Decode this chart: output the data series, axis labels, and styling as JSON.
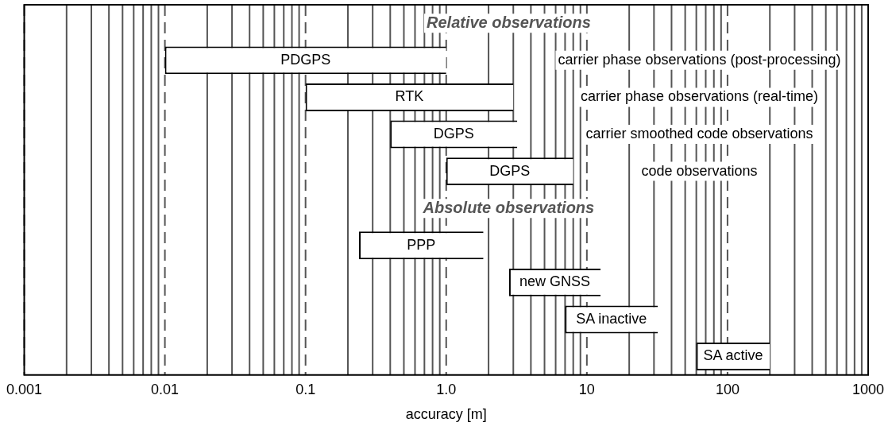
{
  "chart_data": {
    "type": "bar",
    "orientation": "horizontal",
    "xlabel": "accuracy [m]",
    "log": "x",
    "grid": "x",
    "categories": [
      null,
      null,
      null,
      null,
      null,
      null,
      null,
      null,
      null,
      null
    ],
    "base": [
      null,
      0.01,
      0.1,
      0.4,
      1,
      null,
      0.24,
      2.8,
      7,
      60
    ],
    "values": [
      null,
      0.99,
      2.9,
      2.8,
      7,
      null,
      1.6,
      9.7,
      25,
      140
    ],
    "value_labels": [
      null,
      "PDGPS",
      "RTK",
      "DGPS",
      "DGPS",
      null,
      "PPP",
      "new GNSS",
      "SA inactive",
      "SA active"
    ],
    "color": "#ffffff",
    "xlim": [
      0.001,
      1000
    ],
    "xticks": [
      0.001,
      {
        "value": 0.002,
        "label": null
      },
      {
        "value": 0.003,
        "label": null
      },
      {
        "value": 0.004,
        "label": null
      },
      {
        "value": 0.005,
        "label": null
      },
      {
        "value": 0.006,
        "label": null
      },
      {
        "value": 0.007,
        "label": null
      },
      {
        "value": 0.008,
        "label": null
      },
      {
        "value": 0.009,
        "label": null
      },
      0.01,
      {
        "value": 0.02,
        "label": null
      },
      {
        "value": 0.03,
        "label": null
      },
      {
        "value": 0.04,
        "label": null
      },
      {
        "value": 0.05,
        "label": null
      },
      {
        "value": 0.06,
        "label": null
      },
      {
        "value": 0.07,
        "label": null
      },
      {
        "value": 0.08,
        "label": null
      },
      {
        "value": 0.09,
        "label": null
      },
      0.1,
      {
        "value": 0.2,
        "label": null
      },
      {
        "value": 0.3,
        "label": null
      },
      {
        "value": 0.4,
        "label": null
      },
      {
        "value": 0.5,
        "label": null
      },
      {
        "value": 0.6,
        "label": null
      },
      {
        "value": 0.7,
        "label": null
      },
      {
        "value": 0.8,
        "label": null
      },
      {
        "value": 0.9,
        "label": null
      },
      {
        "value": 1,
        "label": "1.0"
      },
      {
        "value": 2,
        "label": null
      },
      {
        "value": 3,
        "label": null
      },
      {
        "value": 4,
        "label": null
      },
      {
        "value": 5,
        "label": null
      },
      {
        "value": 6,
        "label": null
      },
      {
        "value": 7,
        "label": null
      },
      {
        "value": 8,
        "label": null
      },
      {
        "value": 9,
        "label": null
      },
      10,
      {
        "value": 20,
        "label": null
      },
      {
        "value": 30,
        "label": null
      },
      {
        "value": 40,
        "label": null
      },
      {
        "value": 50,
        "label": null
      },
      {
        "value": 60,
        "label": null
      },
      {
        "value": 70,
        "label": null
      },
      {
        "value": 80,
        "label": null
      },
      {
        "value": 90,
        "label": null
      },
      100,
      {
        "value": 200,
        "label": null
      },
      {
        "value": 300,
        "label": null
      },
      {
        "value": 400,
        "label": null
      },
      {
        "value": 500,
        "label": null
      },
      {
        "value": 600,
        "label": null
      },
      {
        "value": 700,
        "label": null
      },
      {
        "value": 800,
        "label": null
      },
      {
        "value": 900,
        "label": null
      },
      1000
    ],
    "annotations": [
      "Relative observations",
      "carrier phase observations (post-processing)",
      "carrier phase observations (real-time)",
      "carrier smoothed code observations",
      "code observations",
      "Absolute observations"
    ]
  }
}
